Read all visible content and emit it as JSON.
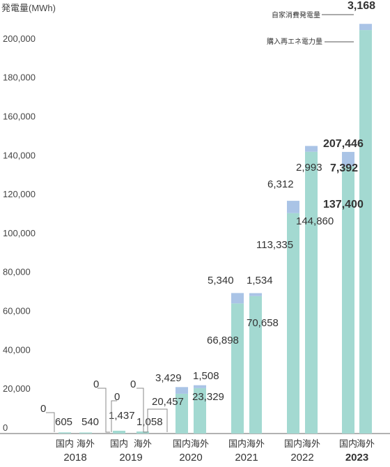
{
  "chart_data": {
    "type": "bar",
    "stacked": true,
    "ylabel": "発電量(MWh)",
    "ylim": [
      0,
      215000
    ],
    "yticks": [
      {
        "value": 0,
        "label": "0"
      },
      {
        "value": 20000,
        "label": "20,000"
      },
      {
        "value": 40000,
        "label": "40,000"
      },
      {
        "value": 60000,
        "label": "60,000"
      },
      {
        "value": 80000,
        "label": "80,000"
      },
      {
        "value": 100000,
        "label": "100,000"
      },
      {
        "value": 120000,
        "label": "120,000"
      },
      {
        "value": 140000,
        "label": "140,000"
      },
      {
        "value": 160000,
        "label": "160,000"
      },
      {
        "value": 180000,
        "label": "180,000"
      },
      {
        "value": 200000,
        "label": "200,000"
      }
    ],
    "colors": {
      "purchased": "#a3d9d1",
      "self": "#aac4e6"
    },
    "series": [
      {
        "name": "購入再エネ電力量",
        "key": "purchased"
      },
      {
        "name": "自家消費発電量",
        "key": "self"
      }
    ],
    "groups": [
      {
        "year": "2018",
        "bars": [
          {
            "category": "国内",
            "purchased": 605,
            "purchased_label": "605",
            "self": 0,
            "self_label": "0"
          },
          {
            "category": "海外",
            "purchased": 540,
            "purchased_label": "540",
            "self": 0,
            "self_label": "0"
          }
        ]
      },
      {
        "year": "2019",
        "bars": [
          {
            "category": "国内",
            "purchased": 1437,
            "purchased_label": "1,437",
            "self": 0,
            "self_label": "0"
          },
          {
            "category": "海外",
            "purchased": 1058,
            "purchased_label": "1,058",
            "self": 0,
            "self_label": "0"
          }
        ]
      },
      {
        "year": "2020",
        "bars": [
          {
            "category": "国内",
            "purchased": 20457,
            "purchased_label": "20,457",
            "self": 3429,
            "self_label": "3,429"
          },
          {
            "category": "海外",
            "purchased": 23329,
            "purchased_label": "23,329",
            "self": 1508,
            "self_label": "1,508"
          }
        ]
      },
      {
        "year": "2021",
        "bars": [
          {
            "category": "国内",
            "purchased": 66898,
            "purchased_label": "66,898",
            "self": 5340,
            "self_label": "5,340"
          },
          {
            "category": "海外",
            "purchased": 70658,
            "purchased_label": "70,658",
            "self": 1534,
            "self_label": "1,534"
          }
        ]
      },
      {
        "year": "2022",
        "bars": [
          {
            "category": "国内",
            "purchased": 113335,
            "purchased_label": "113,335",
            "self": 6312,
            "self_label": "6,312"
          },
          {
            "category": "海外",
            "purchased": 144860,
            "purchased_label": "144,860",
            "self": 2993,
            "self_label": "2,993"
          }
        ]
      },
      {
        "year": "2023",
        "bold": true,
        "bars": [
          {
            "category": "国内",
            "purchased": 137400,
            "purchased_label": "137,400",
            "self": 7392,
            "self_label": "7,392"
          },
          {
            "category": "海外",
            "purchased": 207446,
            "purchased_label": "207,446",
            "self": 3168,
            "self_label": "3,168"
          }
        ]
      }
    ]
  }
}
